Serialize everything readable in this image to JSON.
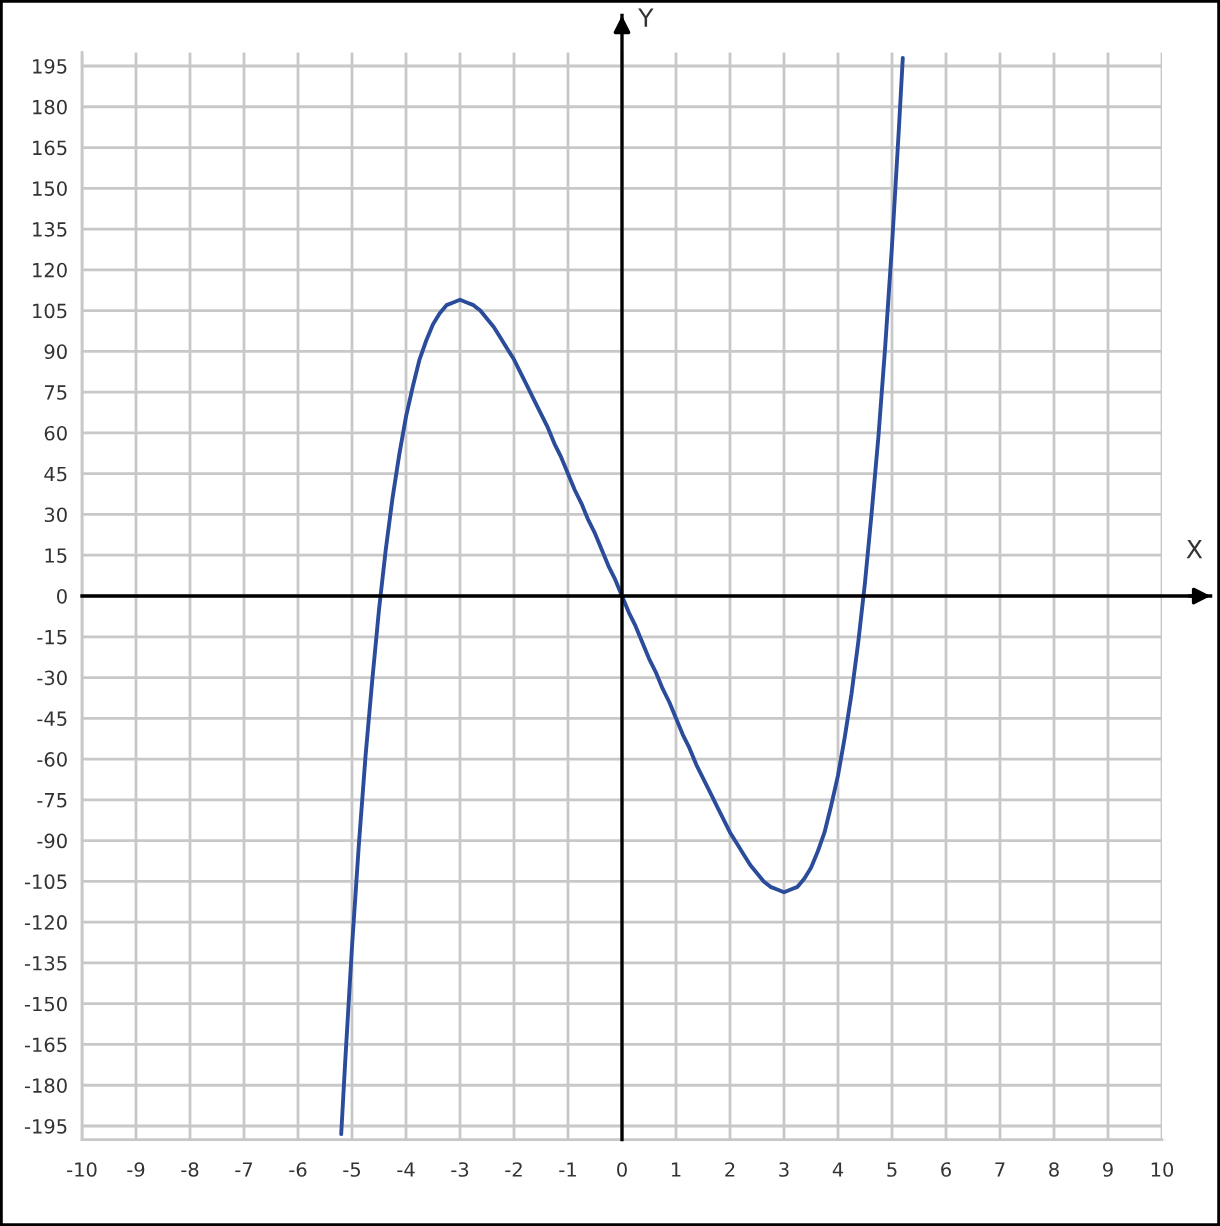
{
  "chart_data": {
    "type": "line",
    "xlabel": "X",
    "ylabel": "Y",
    "x": [
      -5.2,
      -5.125,
      -5,
      -4.875,
      -4.75,
      -4.625,
      -4.5,
      -4.375,
      -4.25,
      -4.125,
      -4,
      -3.875,
      -3.75,
      -3.625,
      -3.5,
      -3.375,
      -3.25,
      -3.125,
      -3,
      -2.875,
      -2.75,
      -2.625,
      -2.5,
      -2.375,
      -2.25,
      -2.125,
      -2,
      -1.875,
      -1.75,
      -1.625,
      -1.5,
      -1.375,
      -1.25,
      -1.125,
      -1,
      -0.875,
      -0.75,
      -0.625,
      -0.5,
      -0.375,
      -0.25,
      -0.125,
      0,
      0.125,
      0.25,
      0.375,
      0.5,
      0.625,
      0.75,
      0.875,
      1,
      1.125,
      1.25,
      1.375,
      1.5,
      1.625,
      1.75,
      1.875,
      2,
      2.125,
      2.25,
      2.375,
      2.5,
      2.625,
      2.75,
      2.875,
      3,
      3.125,
      3.25,
      3.375,
      3.5,
      3.625,
      3.75,
      3.875,
      4,
      4.125,
      4.25,
      4.375,
      4.5,
      4.625,
      4.75,
      4.875,
      5,
      5.125,
      5.2
    ],
    "series": [
      {
        "color": "#2b4c9b",
        "values": [
          -198,
          -171,
          -129,
          -92,
          -59,
          -31,
          -5,
          17,
          36,
          52,
          66,
          77,
          87,
          94,
          100,
          104,
          107,
          108,
          109,
          108,
          107,
          105,
          102,
          99,
          95,
          91,
          87,
          82,
          77,
          72,
          67,
          62,
          56,
          51,
          45,
          39,
          34,
          28,
          23,
          17,
          11,
          6,
          0,
          -6,
          -11,
          -17,
          -23,
          -28,
          -34,
          -39,
          -45,
          -51,
          -56,
          -62,
          -67,
          -72,
          -77,
          -82,
          -87,
          -91,
          -95,
          -99,
          -102,
          -105,
          -107,
          -108,
          -109,
          -108,
          -107,
          -104,
          -100,
          -94,
          -87,
          -77,
          -66,
          -52,
          -36,
          -17,
          5,
          31,
          59,
          92,
          129,
          171,
          198
        ]
      }
    ],
    "xlim": [
      -10,
      10
    ],
    "ylim": [
      -200,
      200
    ],
    "xticks": [
      -10,
      -9,
      -8,
      -7,
      -6,
      -5,
      -4,
      -3,
      -2,
      -1,
      0,
      1,
      2,
      3,
      4,
      5,
      6,
      7,
      8,
      9,
      10
    ],
    "yticks": [
      -195,
      -180,
      -165,
      -150,
      -135,
      -120,
      -105,
      -90,
      -75,
      -60,
      -45,
      -30,
      -15,
      0,
      15,
      30,
      45,
      60,
      75,
      90,
      105,
      120,
      135,
      150,
      165,
      180,
      195
    ],
    "grid": true
  }
}
